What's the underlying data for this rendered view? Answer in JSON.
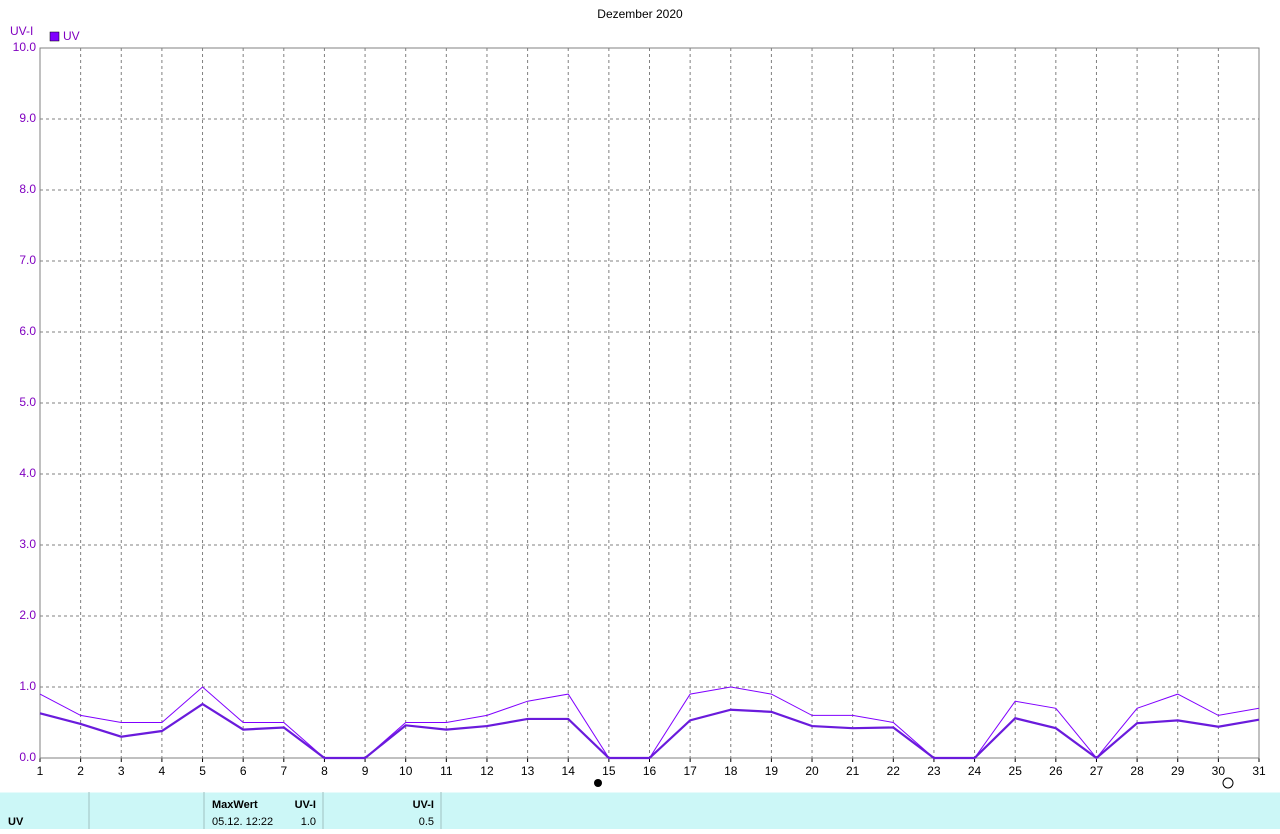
{
  "chart_data": {
    "type": "line",
    "title": "Dezember 2020",
    "y_label": "UV-I",
    "x": [
      1,
      2,
      3,
      4,
      5,
      6,
      7,
      8,
      9,
      10,
      11,
      12,
      13,
      14,
      15,
      16,
      17,
      18,
      19,
      20,
      21,
      22,
      23,
      24,
      25,
      26,
      27,
      28,
      29,
      30,
      31
    ],
    "series": [
      {
        "name": "UV",
        "color": "#8000ff",
        "values": [
          0.9,
          0.6,
          0.5,
          0.5,
          1.0,
          0.5,
          0.5,
          0,
          0,
          0.5,
          0.5,
          0.6,
          0.8,
          0.9,
          0,
          0,
          0.9,
          1.0,
          0.9,
          0.6,
          0.6,
          0.5,
          0,
          0,
          0.8,
          0.7,
          0,
          0.7,
          0.9,
          0.6,
          0.7
        ]
      },
      {
        "color": "#6a1bdc",
        "values": [
          0.63,
          0.48,
          0.3,
          0.38,
          0.76,
          0.4,
          0.43,
          0,
          0,
          0.46,
          0.4,
          0.45,
          0.55,
          0.55,
          0,
          0,
          0.53,
          0.68,
          0.65,
          0.45,
          0.42,
          0.43,
          0,
          0,
          0.56,
          0.42,
          0,
          0.49,
          0.53,
          0.44,
          0.54
        ]
      }
    ],
    "xlim": [
      1,
      31
    ],
    "xticks": [
      1,
      2,
      3,
      4,
      5,
      6,
      7,
      8,
      9,
      10,
      11,
      12,
      13,
      14,
      15,
      16,
      17,
      18,
      19,
      20,
      21,
      22,
      23,
      24,
      25,
      26,
      27,
      28,
      29,
      30,
      31
    ],
    "ylim": [
      0,
      10
    ],
    "yticks": [
      {
        "value": 0,
        "label": "0.0"
      },
      {
        "value": 1,
        "label": "1.0"
      },
      {
        "value": 2,
        "label": "2.0"
      },
      {
        "value": 3,
        "label": "3.0"
      },
      {
        "value": 4,
        "label": "4.0"
      },
      {
        "value": 5,
        "label": "5.0"
      },
      {
        "value": 6,
        "label": "6.0"
      },
      {
        "value": 7,
        "label": "7.0"
      },
      {
        "value": 8,
        "label": "8.0"
      },
      {
        "value": 9,
        "label": "9.0"
      },
      {
        "value": 10,
        "label": "10.0"
      }
    ],
    "grid": true
  },
  "table": {
    "row_label": "UV",
    "max_header": "MaxWert",
    "max_unit": "UV-I",
    "max_time": "05.12.  12:22",
    "max_value": "1.0",
    "avg_unit": "UV-I",
    "avg_value": "0.5"
  }
}
